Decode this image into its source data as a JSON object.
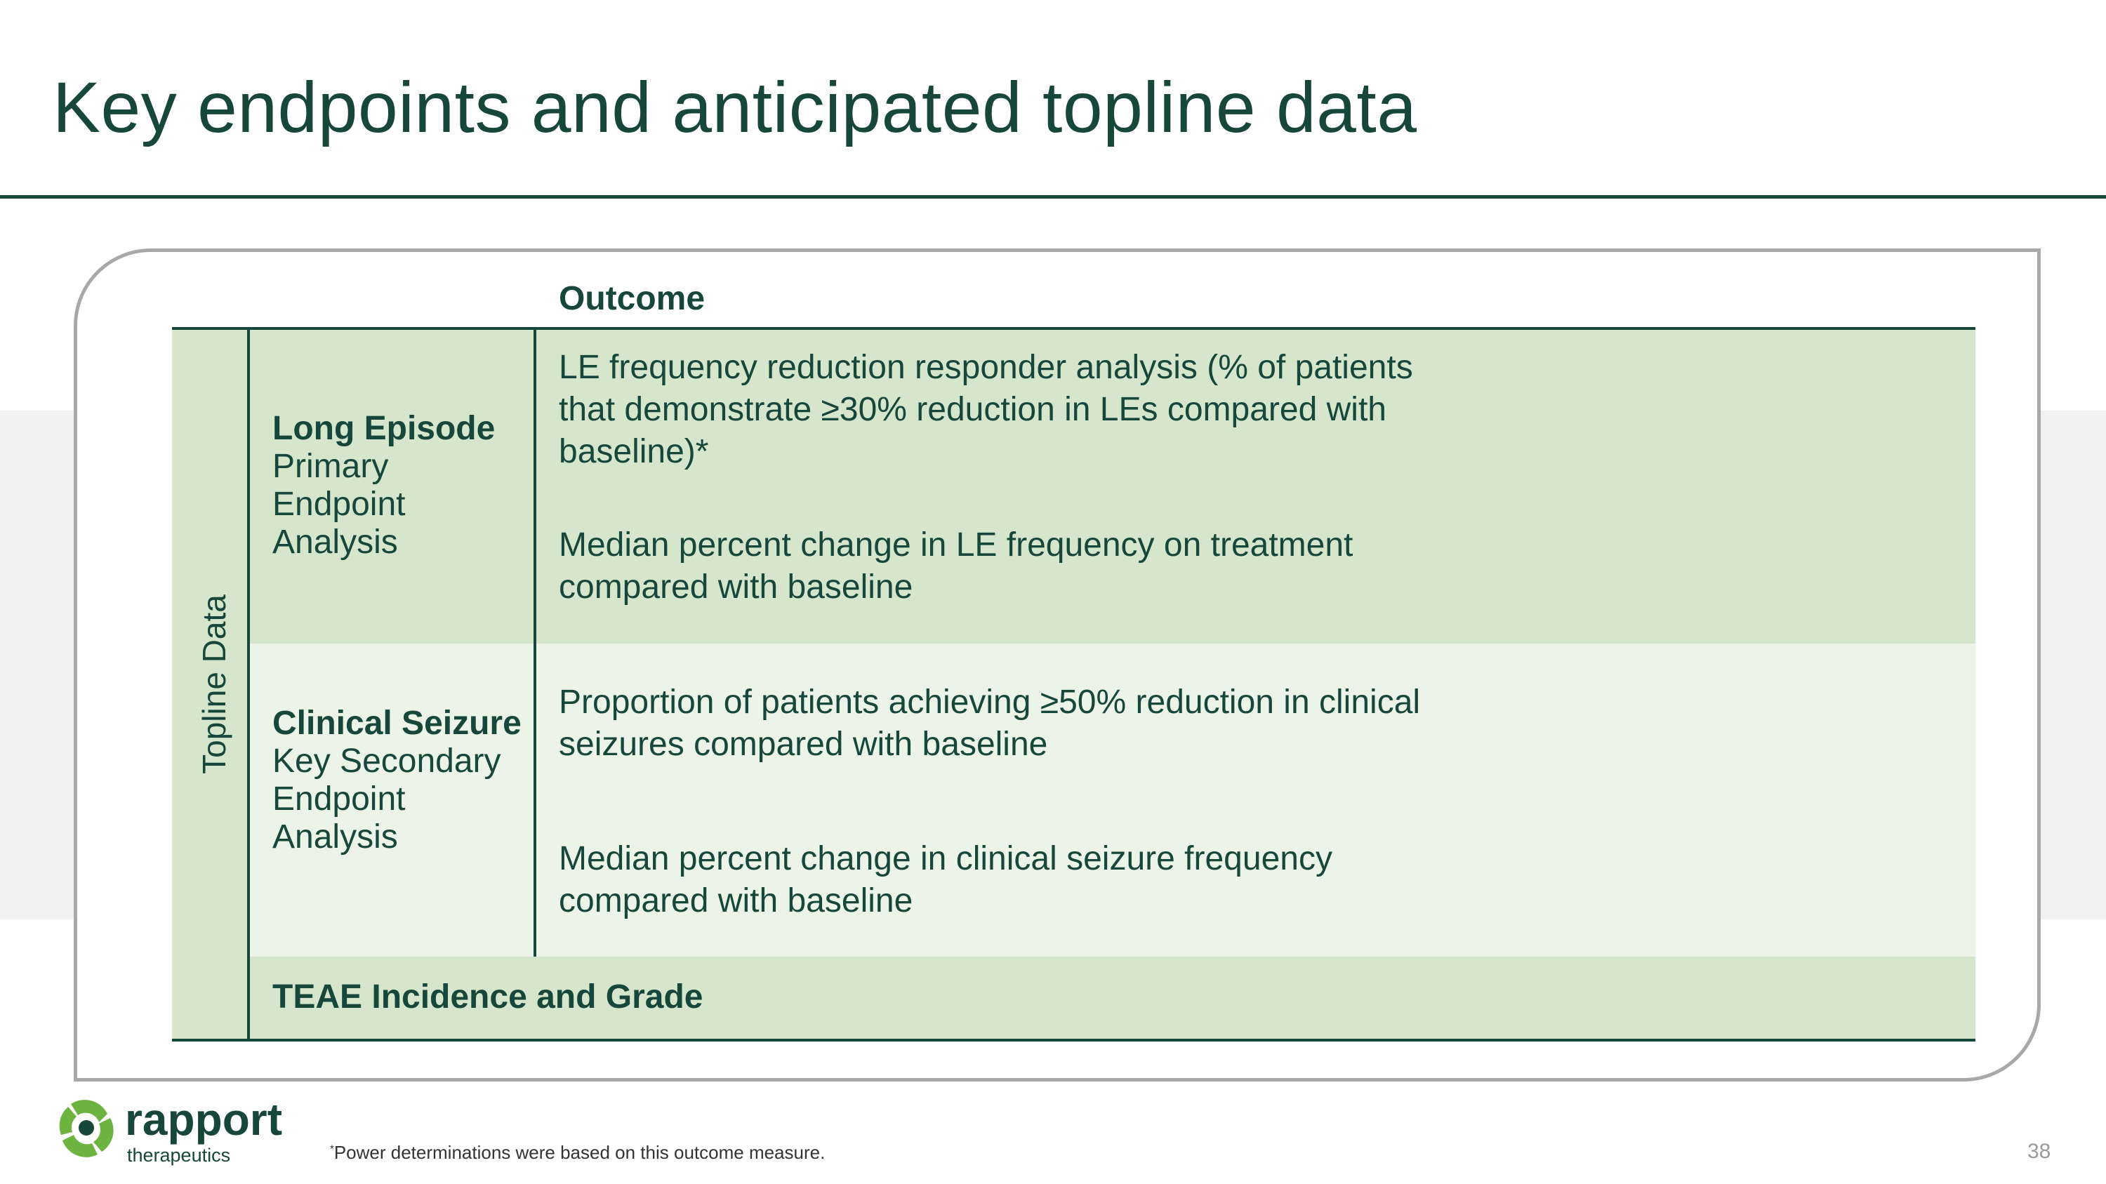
{
  "slide": {
    "title": "Key endpoints and anticipated topline data",
    "page_number": "38"
  },
  "table": {
    "column_header": "Outcome",
    "group_label": "Topline Data",
    "rows": [
      {
        "label_bold": "Long Episode",
        "label_rest": "Primary Endpoint Analysis",
        "outcomes": [
          "LE frequency reduction responder analysis (% of patients that demonstrate ≥30% reduction in LEs compared with baseline)*",
          "Median percent change in LE frequency on treatment compared with baseline"
        ]
      },
      {
        "label_bold": "Clinical Seizure",
        "label_rest": "Key Secondary Endpoint Analysis",
        "outcomes": [
          "Proportion of patients achieving ≥50% reduction in clinical seizures compared with baseline",
          "Median percent change in clinical seizure frequency compared with baseline"
        ]
      },
      {
        "label_bold": "TEAE Incidence and Grade"
      }
    ]
  },
  "footer": {
    "logo_name": "rapport",
    "logo_sub": "therapeutics",
    "footnote_marker": "*",
    "footnote_text": "Power determinations were based on this outcome measure."
  },
  "colors": {
    "primary": "#17473b",
    "row_dark": "#d5e6cc",
    "row_light": "#ecf4e8",
    "logo_green": "#6cb33f"
  }
}
